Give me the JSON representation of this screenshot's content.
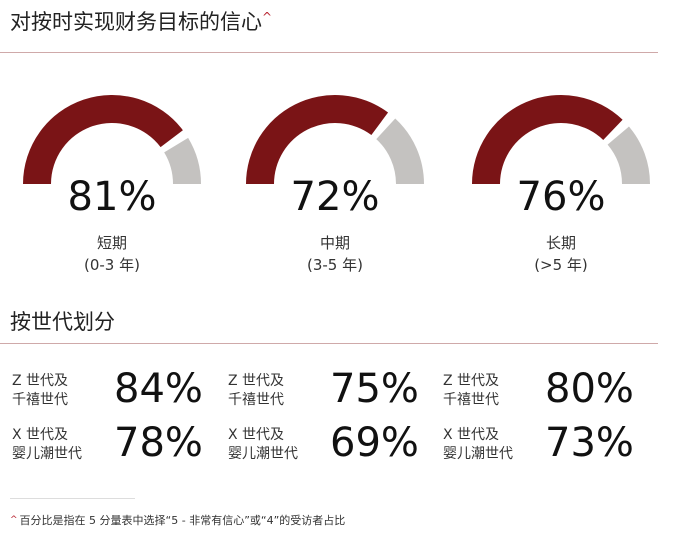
{
  "header": {
    "title": "对按时实现财务目标的信心",
    "title_mark": "^",
    "section_title": "按世代划分",
    "footnote_mark": "^",
    "footnote": "百分比是指在 5 分量表中选择“5 - 非常有信心”或“4”的受访者占比"
  },
  "colors": {
    "primary": "#7a1416",
    "remainder": "#c4c2c0",
    "accent": "#b8232f",
    "rule": "#cfa9a9"
  },
  "chart_data": [
    {
      "type": "gauge",
      "gauges": [
        {
          "value": 81,
          "display": "81%",
          "label": "短期",
          "sublabel": "(0-3 年)"
        },
        {
          "value": 72,
          "display": "72%",
          "label": "中期",
          "sublabel": "(3-5 年)"
        },
        {
          "value": 76,
          "display": "76%",
          "label": "长期",
          "sublabel": "(>5 年)"
        }
      ],
      "range": [
        0,
        100
      ]
    },
    {
      "type": "table",
      "columns": [
        "短期",
        "中期",
        "长期"
      ],
      "rows": [
        {
          "label_line1": "Z 世代及",
          "label_line2": "千禧世代",
          "values": [
            84,
            75,
            80
          ],
          "display": [
            "84%",
            "75%",
            "80%"
          ]
        },
        {
          "label_line1": "X 世代及",
          "label_line2": "婴儿潮世代",
          "values": [
            78,
            69,
            73
          ],
          "display": [
            "78%",
            "69%",
            "73%"
          ]
        }
      ]
    }
  ]
}
